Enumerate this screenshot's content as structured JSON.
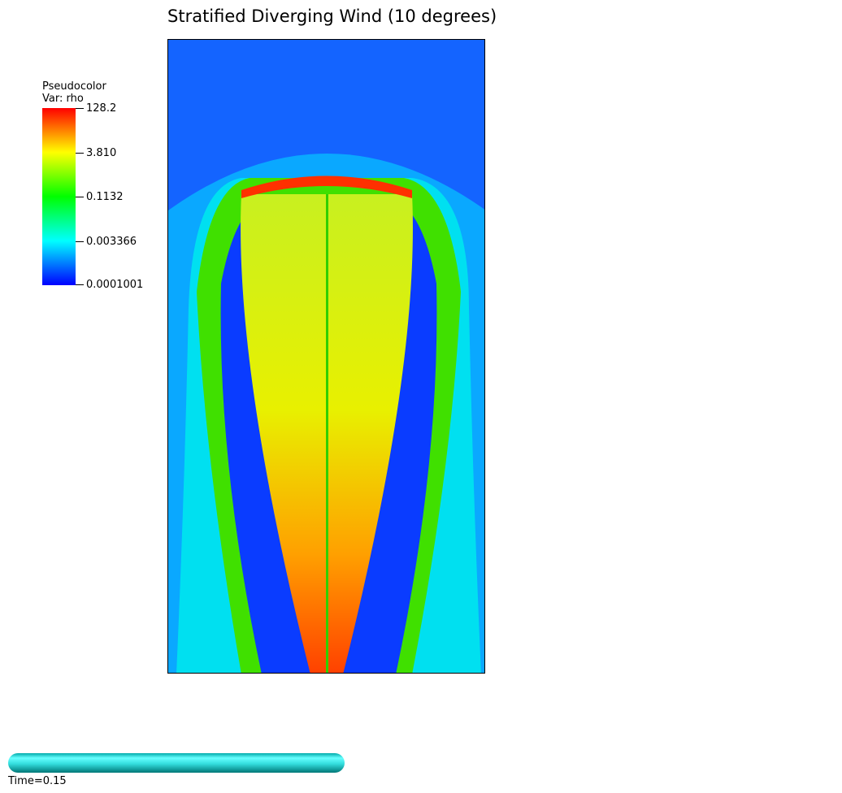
{
  "title": "Stratified Diverging Wind (10 degrees)",
  "legend": {
    "plot_type": "Pseudocolor",
    "variable": "Var: rho",
    "tick_labels": [
      "128.2",
      "3.810",
      "0.1132",
      "0.003366",
      "0.0001001"
    ],
    "colormap": [
      "#ff0000",
      "#ffff00",
      "#00ff00",
      "#00ffff",
      "#0000ff"
    ]
  },
  "time": {
    "label": "Time=0.15",
    "progress": 1.0
  },
  "chart_data": {
    "type": "heatmap",
    "title": "Stratified Diverging Wind (10 degrees)",
    "variable": "rho",
    "scale": "log",
    "range": [
      0.0001001,
      128.2
    ],
    "legend_ticks": [
      128.2,
      3.81,
      0.1132,
      0.003366,
      0.0001001
    ],
    "xlabel": "",
    "ylabel": "",
    "axis_tick_labels_shown": false,
    "time": 0.15
  }
}
